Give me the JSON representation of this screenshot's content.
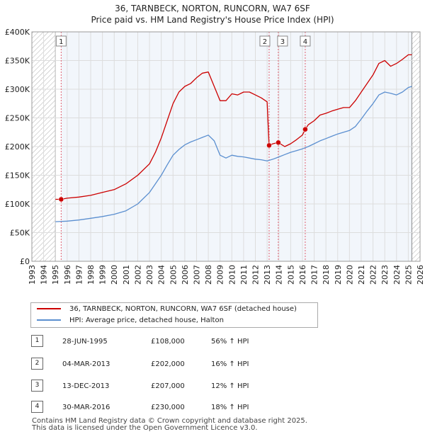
{
  "chart_data": {
    "type": "line",
    "title": "36, TARNBECK, NORTON, RUNCORN, WA7 6SF",
    "subtitle": "Price paid vs. HM Land Registry's House Price Index (HPI)",
    "xlabel": "",
    "ylabel": "",
    "xlim": [
      1993,
      2026
    ],
    "ylim": [
      0,
      400000
    ],
    "x_ticks": [
      "1993",
      "1994",
      "1995",
      "1996",
      "1997",
      "1998",
      "1999",
      "2000",
      "2001",
      "2002",
      "2003",
      "2004",
      "2005",
      "2006",
      "2007",
      "2008",
      "2009",
      "2010",
      "2011",
      "2012",
      "2013",
      "2014",
      "2015",
      "2016",
      "2017",
      "2018",
      "2019",
      "2020",
      "2021",
      "2022",
      "2023",
      "2024",
      "2025",
      "2026"
    ],
    "y_ticks": [
      {
        "value": 0,
        "label": "£0"
      },
      {
        "value": 50000,
        "label": "£50K"
      },
      {
        "value": 100000,
        "label": "£100K"
      },
      {
        "value": 150000,
        "label": "£150K"
      },
      {
        "value": 200000,
        "label": "£200K"
      },
      {
        "value": 250000,
        "label": "£250K"
      },
      {
        "value": 300000,
        "label": "£300K"
      },
      {
        "value": 350000,
        "label": "£350K"
      },
      {
        "value": 400000,
        "label": "£400K"
      }
    ],
    "data_range": [
      1995.0,
      2025.3
    ],
    "colors": {
      "property": "#cc0000",
      "hpi": "#5b8fd0",
      "marker_line": "#e06070",
      "hatch": "#aaaaaa",
      "grid": "#dddddd",
      "band": "#e8eef8"
    },
    "series": [
      {
        "name": "36, TARNBECK, NORTON, RUNCORN, WA7 6SF (detached house)",
        "color": "#cc0000",
        "x": [
          1995.0,
          1995.49,
          1996,
          1997,
          1998,
          1999,
          2000,
          2001,
          2002,
          2003,
          2003.5,
          2004,
          2004.5,
          2005,
          2005.5,
          2006,
          2006.5,
          2007,
          2007.5,
          2008,
          2008.5,
          2009,
          2009.5,
          2010,
          2010.5,
          2011,
          2011.5,
          2012,
          2012.5,
          2013.0,
          2013.17,
          2013.5,
          2013.95,
          2014.5,
          2015,
          2015.5,
          2016.0,
          2016.24,
          2016.5,
          2017,
          2017.5,
          2018,
          2018.5,
          2019,
          2019.5,
          2020,
          2020.5,
          2021,
          2021.5,
          2022,
          2022.5,
          2023,
          2023.5,
          2024,
          2024.5,
          2025.0,
          2025.3
        ],
        "values": [
          108000,
          108000,
          110000,
          112000,
          115000,
          120000,
          125000,
          135000,
          150000,
          170000,
          190000,
          215000,
          245000,
          275000,
          295000,
          305000,
          310000,
          320000,
          328000,
          330000,
          305000,
          280000,
          280000,
          292000,
          290000,
          295000,
          295000,
          290000,
          285000,
          278000,
          202000,
          205000,
          207000,
          200000,
          205000,
          212000,
          220000,
          230000,
          238000,
          245000,
          255000,
          258000,
          262000,
          265000,
          268000,
          268000,
          280000,
          295000,
          310000,
          325000,
          345000,
          350000,
          340000,
          345000,
          352000,
          360000,
          360000
        ]
      },
      {
        "name": "HPI: Average price, detached house, Halton",
        "color": "#5b8fd0",
        "x": [
          1995.0,
          1996,
          1997,
          1998,
          1999,
          2000,
          2001,
          2002,
          2003,
          2003.5,
          2004,
          2004.5,
          2005,
          2005.5,
          2006,
          2006.5,
          2007,
          2007.5,
          2008,
          2008.5,
          2009,
          2009.5,
          2010,
          2010.5,
          2011,
          2011.5,
          2012,
          2012.5,
          2013,
          2013.5,
          2014,
          2014.5,
          2015,
          2015.5,
          2016,
          2016.5,
          2017,
          2017.5,
          2018,
          2018.5,
          2019,
          2019.5,
          2020,
          2020.5,
          2021,
          2021.5,
          2022,
          2022.5,
          2023,
          2023.5,
          2024,
          2024.5,
          2025.0,
          2025.3
        ],
        "values": [
          69000,
          70000,
          72000,
          75000,
          78000,
          82000,
          88000,
          100000,
          120000,
          135000,
          150000,
          168000,
          185000,
          195000,
          203000,
          208000,
          212000,
          216000,
          220000,
          210000,
          185000,
          180000,
          185000,
          183000,
          182000,
          180000,
          178000,
          177000,
          175000,
          178000,
          182000,
          186000,
          190000,
          193000,
          196000,
          200000,
          205000,
          210000,
          214000,
          218000,
          222000,
          225000,
          228000,
          235000,
          248000,
          262000,
          275000,
          290000,
          295000,
          293000,
          290000,
          295000,
          303000,
          305000
        ]
      }
    ],
    "transactions": [
      {
        "num": "1",
        "date": "28-JUN-1995",
        "x": 1995.49,
        "value": 108000,
        "price": "£108,000",
        "hpi": "56% ↑ HPI"
      },
      {
        "num": "2",
        "date": "04-MAR-2013",
        "x": 2013.17,
        "value": 202000,
        "price": "£202,000",
        "hpi": "16% ↑ HPI"
      },
      {
        "num": "3",
        "date": "13-DEC-2013",
        "x": 2013.95,
        "value": 207000,
        "price": "£207,000",
        "hpi": "12% ↑ HPI"
      },
      {
        "num": "4",
        "date": "30-MAR-2016",
        "x": 2016.24,
        "value": 230000,
        "price": "£230,000",
        "hpi": "18% ↑ HPI"
      }
    ]
  },
  "legend": {
    "property_label": "36, TARNBECK, NORTON, RUNCORN, WA7 6SF (detached house)",
    "hpi_label": "HPI: Average price, detached house, Halton"
  },
  "footer": {
    "line1": "Contains HM Land Registry data © Crown copyright and database right 2025.",
    "line2": "This data is licensed under the Open Government Licence v3.0."
  }
}
